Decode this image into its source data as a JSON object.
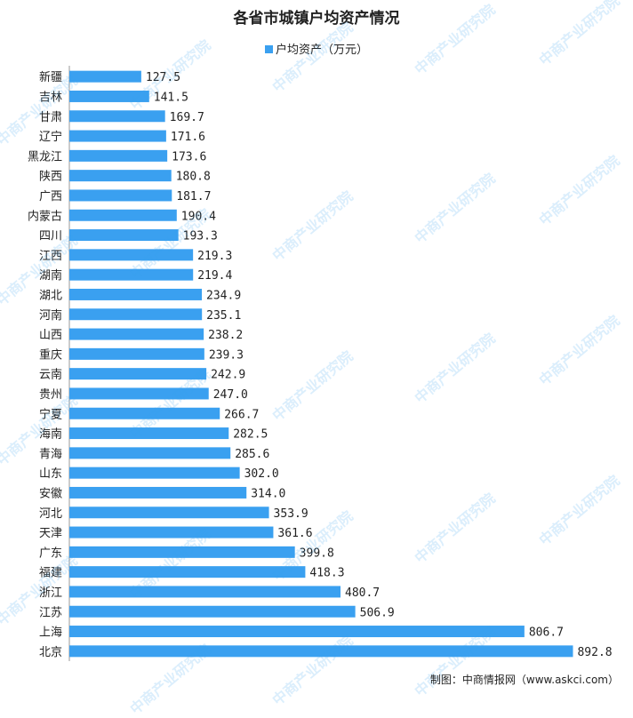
{
  "chart_data": {
    "type": "bar",
    "orientation": "horizontal",
    "title": "各省市城镇户均资产情况",
    "legend_position": "top-center",
    "grid": false,
    "color": "#3aa0f0",
    "xlim": [
      0,
      900
    ],
    "series": [
      {
        "name": "户均资产（万元）",
        "values": [
          127.5,
          141.5,
          169.7,
          171.6,
          173.6,
          180.8,
          181.7,
          190.4,
          193.3,
          219.3,
          219.4,
          234.9,
          235.1,
          238.2,
          239.3,
          242.9,
          247.0,
          266.7,
          282.5,
          285.6,
          302.0,
          314.0,
          353.9,
          361.6,
          399.8,
          418.3,
          480.7,
          506.9,
          806.7,
          892.8
        ]
      }
    ],
    "categories": [
      "新疆",
      "吉林",
      "甘肃",
      "辽宁",
      "黑龙江",
      "陕西",
      "广西",
      "内蒙古",
      "四川",
      "江西",
      "湖南",
      "湖北",
      "河南",
      "山西",
      "重庆",
      "云南",
      "贵州",
      "宁夏",
      "海南",
      "青海",
      "山东",
      "安徽",
      "河北",
      "天津",
      "广东",
      "福建",
      "浙江",
      "江苏",
      "上海",
      "北京"
    ],
    "value_labels": [
      "127.5",
      "141.5",
      "169.7",
      "171.6",
      "173.6",
      "180.8",
      "181.7",
      "190.4",
      "193.3",
      "219.3",
      "219.4",
      "234.9",
      "235.1",
      "238.2",
      "239.3",
      "242.9",
      "247.0",
      "266.7",
      "282.5",
      "285.6",
      "302.0",
      "314.0",
      "353.9",
      "361.6",
      "399.8",
      "418.3",
      "480.7",
      "506.9",
      "806.7",
      "892.8"
    ]
  },
  "source": "制图：中商情报网（www.askci.com）",
  "watermark_text": "中商产业研究院"
}
